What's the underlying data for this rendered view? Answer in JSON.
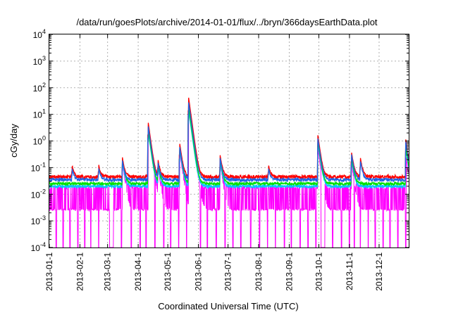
{
  "chart_data": {
    "type": "line",
    "title": "/data/run/goesPlots/archive/2014-01-01/flux/../bryn/366daysEarthData.plot",
    "xlabel": "Coordinated Universal Time (UTC)",
    "ylabel": "cGy/day",
    "yscale": "log",
    "ylim": [
      0.0001,
      10000
    ],
    "xlim": [
      "2013-01-01",
      "2013-12-31"
    ],
    "grid": true,
    "x_ticks": [
      "2013-01-1",
      "2013-02-1",
      "2013-03-1",
      "2013-04-1",
      "2013-05-1",
      "2013-06-1",
      "2013-07-1",
      "2013-08-1",
      "2013-09-1",
      "2013-10-1",
      "2013-11-1",
      "2013-12-1"
    ],
    "y_ticks": [
      {
        "value": 0.0001,
        "base": "10",
        "exp": "-4"
      },
      {
        "value": 0.001,
        "base": "10",
        "exp": "-3"
      },
      {
        "value": 0.01,
        "base": "10",
        "exp": "-2"
      },
      {
        "value": 0.1,
        "base": "10",
        "exp": "-1"
      },
      {
        "value": 1,
        "base": "10",
        "exp": "0"
      },
      {
        "value": 10,
        "base": "10",
        "exp": "1"
      },
      {
        "value": 100,
        "base": "10",
        "exp": "2"
      },
      {
        "value": 1000,
        "base": "10",
        "exp": "3"
      },
      {
        "value": 10000,
        "base": "10",
        "exp": "4"
      }
    ],
    "series": [
      {
        "color": "#ff00ff",
        "baseline": 0.006,
        "spread": 0.6,
        "dropouts_to": 0.0001,
        "dropout_ranges": [
          [
            "2013-03-03",
            "2013-03-07"
          ],
          [
            "2013-10-03",
            "2013-10-07"
          ]
        ],
        "dropout_dates": [
          "2013-01-08",
          "2013-01-15",
          "2013-01-22",
          "2013-01-30",
          "2013-02-06",
          "2013-02-12",
          "2013-02-20",
          "2013-03-15",
          "2013-03-25",
          "2013-04-03",
          "2013-04-09",
          "2013-04-18",
          "2013-04-27",
          "2013-05-04",
          "2013-05-12",
          "2013-05-20",
          "2013-06-03",
          "2013-06-10",
          "2013-06-19",
          "2013-06-28",
          "2013-07-06",
          "2013-07-14",
          "2013-07-24",
          "2013-08-02",
          "2013-08-10",
          "2013-08-18",
          "2013-08-27",
          "2013-09-03",
          "2013-09-12",
          "2013-09-20",
          "2013-09-28",
          "2013-10-15",
          "2013-10-24",
          "2013-11-01",
          "2013-11-06",
          "2013-11-12",
          "2013-11-20",
          "2013-11-27",
          "2013-12-05",
          "2013-12-12",
          "2013-12-20",
          "2013-12-28"
        ],
        "events": [
          [
            "2013-03-16",
            0.15
          ],
          [
            "2013-04-11",
            3.5
          ],
          [
            "2013-04-21",
            0.1
          ],
          [
            "2013-05-13",
            0.4
          ],
          [
            "2013-05-22",
            18
          ],
          [
            "2013-06-23",
            0.15
          ],
          [
            "2013-09-30",
            0.5
          ],
          [
            "2013-11-03",
            0.15
          ],
          [
            "2013-12-28",
            0.3
          ]
        ]
      },
      {
        "color": "#00c8ff",
        "baseline": 0.02,
        "spread": 0.12,
        "events": [
          [
            "2013-03-16",
            0.15
          ],
          [
            "2013-04-11",
            2.5
          ],
          [
            "2013-04-21",
            0.1
          ],
          [
            "2013-05-13",
            0.5
          ],
          [
            "2013-05-22",
            15
          ],
          [
            "2013-06-23",
            0.15
          ],
          [
            "2013-09-30",
            0.8
          ],
          [
            "2013-11-03",
            0.2
          ],
          [
            "2013-12-28",
            0.5
          ]
        ]
      },
      {
        "color": "#00e000",
        "baseline": 0.025,
        "spread": 0.12,
        "events": [
          [
            "2013-03-16",
            0.2
          ],
          [
            "2013-04-11",
            3
          ],
          [
            "2013-04-21",
            0.12
          ],
          [
            "2013-05-13",
            0.6
          ],
          [
            "2013-05-22",
            20
          ],
          [
            "2013-06-23",
            0.2
          ],
          [
            "2013-09-30",
            1
          ],
          [
            "2013-11-03",
            0.25
          ],
          [
            "2013-12-28",
            0.6
          ]
        ]
      },
      {
        "color": "#ff0000",
        "baseline": 0.045,
        "spread": 0.16,
        "events": [
          [
            "2013-01-24",
            0.08
          ],
          [
            "2013-02-20",
            0.08
          ],
          [
            "2013-03-16",
            0.2
          ],
          [
            "2013-04-11",
            5.5
          ],
          [
            "2013-04-21",
            0.15
          ],
          [
            "2013-05-13",
            0.8
          ],
          [
            "2013-05-22",
            45
          ],
          [
            "2013-06-23",
            0.25
          ],
          [
            "2013-08-11",
            0.08
          ],
          [
            "2013-09-30",
            1.6
          ],
          [
            "2013-11-03",
            0.35
          ],
          [
            "2013-11-12",
            0.2
          ],
          [
            "2013-12-28",
            1.1
          ]
        ]
      },
      {
        "color": "#1e64e6",
        "baseline": 0.035,
        "spread": 0.14,
        "events": [
          [
            "2013-01-24",
            0.06
          ],
          [
            "2013-02-20",
            0.06
          ],
          [
            "2013-03-16",
            0.15
          ],
          [
            "2013-04-11",
            4
          ],
          [
            "2013-04-21",
            0.12
          ],
          [
            "2013-05-13",
            0.6
          ],
          [
            "2013-05-22",
            30
          ],
          [
            "2013-06-23",
            0.2
          ],
          [
            "2013-08-11",
            0.06
          ],
          [
            "2013-09-30",
            1.2
          ],
          [
            "2013-11-03",
            0.3
          ],
          [
            "2013-11-12",
            0.15
          ],
          [
            "2013-12-28",
            0.9
          ]
        ]
      }
    ]
  }
}
